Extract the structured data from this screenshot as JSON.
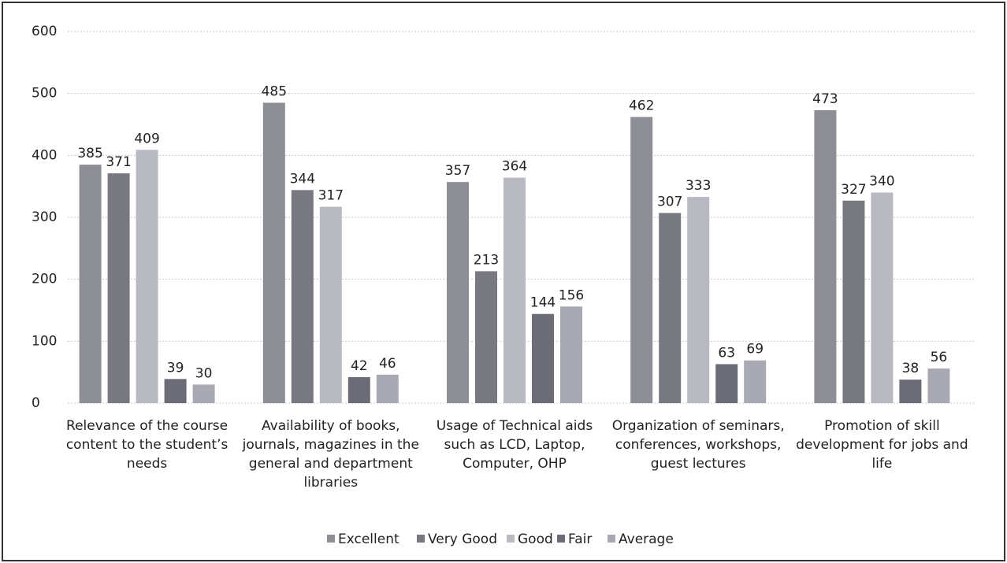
{
  "chart_data": {
    "type": "bar",
    "categories": [
      "Relevance of the course content to the student’s needs",
      "Availability of books, journals, magazines in the general and department libraries",
      "Usage of Technical aids such as LCD, Laptop, Computer,  OHP",
      "Organization of seminars, conferences, workshops, guest lectures",
      "Promotion of skill development for jobs and life"
    ],
    "series": [
      {
        "name": "Excellent",
        "color": "#8e8e97",
        "values": [
          385,
          485,
          357,
          462,
          473
        ]
      },
      {
        "name": "Very Good",
        "color": "#787881",
        "values": [
          371,
          344,
          213,
          307,
          327
        ]
      },
      {
        "name": "Good",
        "color": "#b9b9c2",
        "values": [
          409,
          317,
          364,
          333,
          340
        ]
      },
      {
        "name": "Fair",
        "color": "#6c6c77",
        "values": [
          39,
          42,
          144,
          63,
          38
        ]
      },
      {
        "name": "Average",
        "color": "#a9a9b4",
        "values": [
          30,
          46,
          156,
          69,
          56
        ]
      }
    ],
    "ylim": [
      0,
      600
    ],
    "yticks": [
      0,
      100,
      200,
      300,
      400,
      500,
      600
    ],
    "grid": true,
    "legend": "bottom"
  }
}
